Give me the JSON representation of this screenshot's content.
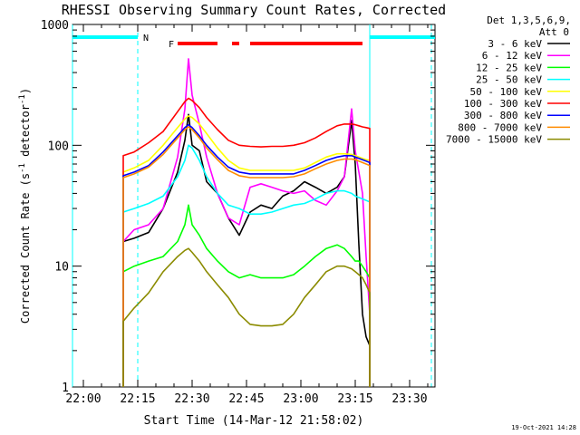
{
  "chart_data": {
    "type": "line",
    "title": "RHESSI Observing Summary Count Rates, Corrected",
    "xlabel": "Start Time (14-Mar-12 21:58:02)",
    "ylabel_main": "Corrected Count Rate (s",
    "ylabel_sup1": "-1",
    "ylabel_mid": " detector",
    "ylabel_sup2": "-1",
    "ylabel_end": ")",
    "yscale": "log",
    "ylim": [
      1,
      1000
    ],
    "xlim_minutes": [
      -3,
      97
    ],
    "x_ticks": [
      {
        "label": "22:00",
        "minute": 0
      },
      {
        "label": "22:15",
        "minute": 15
      },
      {
        "label": "22:30",
        "minute": 30
      },
      {
        "label": "22:45",
        "minute": 45
      },
      {
        "label": "23:00",
        "minute": 60
      },
      {
        "label": "23:15",
        "minute": 75
      },
      {
        "label": "23:30",
        "minute": 90
      }
    ],
    "y_ticks": [
      {
        "label": "1",
        "value": 1
      },
      {
        "label": "10",
        "value": 10
      },
      {
        "label": "100",
        "value": 100
      },
      {
        "label": "1000",
        "value": 1000
      }
    ],
    "legend": {
      "header_line1": "Det 1,3,5,6,9,",
      "header_line2": "Att 0",
      "placement": "right"
    },
    "series": [
      {
        "name": "3 - 6 keV",
        "color": "#000000",
        "points": [
          [
            11,
            16
          ],
          [
            14,
            17
          ],
          [
            18,
            19
          ],
          [
            22,
            30
          ],
          [
            26,
            60
          ],
          [
            28,
            110
          ],
          [
            29,
            180
          ],
          [
            30,
            100
          ],
          [
            32,
            90
          ],
          [
            34,
            50
          ],
          [
            37,
            40
          ],
          [
            40,
            25
          ],
          [
            43,
            18
          ],
          [
            46,
            28
          ],
          [
            49,
            32
          ],
          [
            52,
            30
          ],
          [
            55,
            38
          ],
          [
            58,
            42
          ],
          [
            61,
            50
          ],
          [
            64,
            45
          ],
          [
            67,
            40
          ],
          [
            70,
            45
          ],
          [
            72,
            55
          ],
          [
            74,
            160
          ],
          [
            75,
            70
          ],
          [
            76,
            15
          ],
          [
            77,
            4
          ],
          [
            78,
            2.6
          ],
          [
            79,
            2.2
          ]
        ]
      },
      {
        "name": "6 - 12 keV",
        "color": "#ff00ff",
        "points": [
          [
            11,
            16
          ],
          [
            14,
            20
          ],
          [
            18,
            22
          ],
          [
            22,
            30
          ],
          [
            26,
            80
          ],
          [
            28,
            200
          ],
          [
            29,
            520
          ],
          [
            30,
            260
          ],
          [
            32,
            150
          ],
          [
            34,
            80
          ],
          [
            37,
            40
          ],
          [
            40,
            25
          ],
          [
            43,
            22
          ],
          [
            46,
            45
          ],
          [
            49,
            48
          ],
          [
            52,
            45
          ],
          [
            55,
            42
          ],
          [
            58,
            40
          ],
          [
            61,
            42
          ],
          [
            64,
            35
          ],
          [
            67,
            32
          ],
          [
            70,
            42
          ],
          [
            72,
            55
          ],
          [
            74,
            200
          ],
          [
            75,
            90
          ],
          [
            76,
            60
          ],
          [
            77,
            40
          ],
          [
            78,
            12
          ],
          [
            79,
            4
          ]
        ]
      },
      {
        "name": "12 - 25 keV",
        "color": "#00ff00",
        "points": [
          [
            11,
            9
          ],
          [
            14,
            10
          ],
          [
            18,
            11
          ],
          [
            22,
            12
          ],
          [
            26,
            16
          ],
          [
            28,
            22
          ],
          [
            29,
            32
          ],
          [
            30,
            22
          ],
          [
            32,
            18
          ],
          [
            34,
            14
          ],
          [
            37,
            11
          ],
          [
            40,
            9
          ],
          [
            43,
            8
          ],
          [
            46,
            8.5
          ],
          [
            49,
            8
          ],
          [
            52,
            8
          ],
          [
            55,
            8
          ],
          [
            58,
            8.5
          ],
          [
            61,
            10
          ],
          [
            64,
            12
          ],
          [
            67,
            14
          ],
          [
            70,
            15
          ],
          [
            72,
            14
          ],
          [
            74,
            12
          ],
          [
            75,
            11
          ],
          [
            76,
            11
          ],
          [
            77,
            10
          ],
          [
            78,
            9
          ],
          [
            79,
            8
          ]
        ]
      },
      {
        "name": "25 - 50 keV",
        "color": "#00ffff",
        "points": [
          [
            11,
            28
          ],
          [
            14,
            30
          ],
          [
            18,
            33
          ],
          [
            22,
            38
          ],
          [
            26,
            55
          ],
          [
            28,
            75
          ],
          [
            29,
            100
          ],
          [
            30,
            95
          ],
          [
            32,
            75
          ],
          [
            34,
            55
          ],
          [
            37,
            40
          ],
          [
            40,
            32
          ],
          [
            43,
            30
          ],
          [
            46,
            27
          ],
          [
            49,
            27
          ],
          [
            52,
            28
          ],
          [
            55,
            30
          ],
          [
            58,
            32
          ],
          [
            61,
            33
          ],
          [
            64,
            36
          ],
          [
            67,
            40
          ],
          [
            70,
            42
          ],
          [
            72,
            42
          ],
          [
            74,
            40
          ],
          [
            75,
            38
          ],
          [
            76,
            37
          ],
          [
            77,
            36
          ],
          [
            78,
            35
          ],
          [
            79,
            34
          ]
        ]
      },
      {
        "name": "50 - 100 keV",
        "color": "#ffff00",
        "points": [
          [
            11,
            60
          ],
          [
            14,
            65
          ],
          [
            18,
            75
          ],
          [
            22,
            100
          ],
          [
            26,
            140
          ],
          [
            28,
            165
          ],
          [
            29,
            175
          ],
          [
            30,
            170
          ],
          [
            32,
            150
          ],
          [
            34,
            125
          ],
          [
            37,
            95
          ],
          [
            40,
            75
          ],
          [
            43,
            65
          ],
          [
            46,
            62
          ],
          [
            49,
            62
          ],
          [
            52,
            62
          ],
          [
            55,
            62
          ],
          [
            58,
            62
          ],
          [
            61,
            65
          ],
          [
            64,
            72
          ],
          [
            67,
            80
          ],
          [
            70,
            85
          ],
          [
            72,
            85
          ],
          [
            74,
            84
          ],
          [
            75,
            82
          ],
          [
            76,
            80
          ],
          [
            77,
            78
          ],
          [
            78,
            76
          ],
          [
            79,
            75
          ]
        ]
      },
      {
        "name": "100 - 300 keV",
        "color": "#ff0000",
        "points": [
          [
            11,
            82
          ],
          [
            14,
            88
          ],
          [
            18,
            105
          ],
          [
            22,
            130
          ],
          [
            26,
            190
          ],
          [
            28,
            230
          ],
          [
            29,
            245
          ],
          [
            30,
            235
          ],
          [
            32,
            205
          ],
          [
            34,
            170
          ],
          [
            37,
            135
          ],
          [
            40,
            110
          ],
          [
            43,
            100
          ],
          [
            46,
            98
          ],
          [
            49,
            97
          ],
          [
            52,
            98
          ],
          [
            55,
            98
          ],
          [
            58,
            100
          ],
          [
            61,
            105
          ],
          [
            64,
            115
          ],
          [
            67,
            130
          ],
          [
            70,
            145
          ],
          [
            72,
            150
          ],
          [
            74,
            150
          ],
          [
            75,
            148
          ],
          [
            76,
            145
          ],
          [
            77,
            142
          ],
          [
            78,
            140
          ],
          [
            79,
            138
          ]
        ]
      },
      {
        "name": "300 - 800 keV",
        "color": "#0000ff",
        "points": [
          [
            11,
            56
          ],
          [
            14,
            60
          ],
          [
            18,
            68
          ],
          [
            22,
            88
          ],
          [
            26,
            120
          ],
          [
            28,
            140
          ],
          [
            29,
            148
          ],
          [
            30,
            140
          ],
          [
            32,
            120
          ],
          [
            34,
            100
          ],
          [
            37,
            80
          ],
          [
            40,
            66
          ],
          [
            43,
            60
          ],
          [
            46,
            58
          ],
          [
            49,
            58
          ],
          [
            52,
            58
          ],
          [
            55,
            58
          ],
          [
            58,
            58
          ],
          [
            61,
            62
          ],
          [
            64,
            68
          ],
          [
            67,
            75
          ],
          [
            70,
            80
          ],
          [
            72,
            82
          ],
          [
            74,
            82
          ],
          [
            75,
            80
          ],
          [
            76,
            78
          ],
          [
            77,
            76
          ],
          [
            78,
            74
          ],
          [
            79,
            72
          ]
        ]
      },
      {
        "name": "800 - 7000 keV",
        "color": "#ff8c00",
        "points": [
          [
            11,
            54
          ],
          [
            14,
            58
          ],
          [
            18,
            66
          ],
          [
            22,
            84
          ],
          [
            26,
            115
          ],
          [
            28,
            135
          ],
          [
            29,
            142
          ],
          [
            30,
            135
          ],
          [
            32,
            115
          ],
          [
            34,
            95
          ],
          [
            37,
            76
          ],
          [
            40,
            62
          ],
          [
            43,
            56
          ],
          [
            46,
            54
          ],
          [
            49,
            54
          ],
          [
            52,
            54
          ],
          [
            55,
            54
          ],
          [
            58,
            55
          ],
          [
            61,
            58
          ],
          [
            64,
            64
          ],
          [
            67,
            70
          ],
          [
            70,
            75
          ],
          [
            72,
            77
          ],
          [
            74,
            77
          ],
          [
            75,
            76
          ],
          [
            76,
            74
          ],
          [
            77,
            72
          ],
          [
            78,
            70
          ],
          [
            79,
            68
          ]
        ]
      },
      {
        "name": "7000 - 15000 keV",
        "color": "#8b8b00",
        "points": [
          [
            11,
            3.5
          ],
          [
            14,
            4.5
          ],
          [
            18,
            6
          ],
          [
            22,
            9
          ],
          [
            26,
            12
          ],
          [
            28,
            13.5
          ],
          [
            29,
            14
          ],
          [
            30,
            13
          ],
          [
            32,
            11
          ],
          [
            34,
            9
          ],
          [
            37,
            7
          ],
          [
            40,
            5.5
          ],
          [
            43,
            4
          ],
          [
            46,
            3.3
          ],
          [
            49,
            3.2
          ],
          [
            52,
            3.2
          ],
          [
            55,
            3.3
          ],
          [
            58,
            4
          ],
          [
            61,
            5.5
          ],
          [
            64,
            7
          ],
          [
            67,
            9
          ],
          [
            70,
            10
          ],
          [
            72,
            10
          ],
          [
            74,
            9.5
          ],
          [
            75,
            9
          ],
          [
            76,
            8.5
          ],
          [
            77,
            8
          ],
          [
            78,
            7
          ],
          [
            79,
            6
          ]
        ]
      }
    ],
    "bars": [
      {
        "label": "N",
        "color": "#00ffff",
        "segments_minutes": [
          [
            -3,
            15
          ],
          [
            79,
            97
          ]
        ]
      },
      {
        "label": "F",
        "color": "#ff0000",
        "segments_minutes": [
          [
            26,
            37
          ],
          [
            41,
            43
          ],
          [
            46,
            77
          ]
        ]
      }
    ],
    "vertical_lines_minutes": [
      {
        "minute": -3,
        "style": "solid",
        "color": "#00ffff"
      },
      {
        "minute": 15,
        "style": "dashed",
        "color": "#00ffff"
      },
      {
        "minute": 79,
        "style": "solid",
        "color": "#00ffff"
      },
      {
        "minute": 96,
        "style": "dashed",
        "color": "#00ffff"
      }
    ],
    "timestamp": "19-Oct-2021 14:28"
  }
}
